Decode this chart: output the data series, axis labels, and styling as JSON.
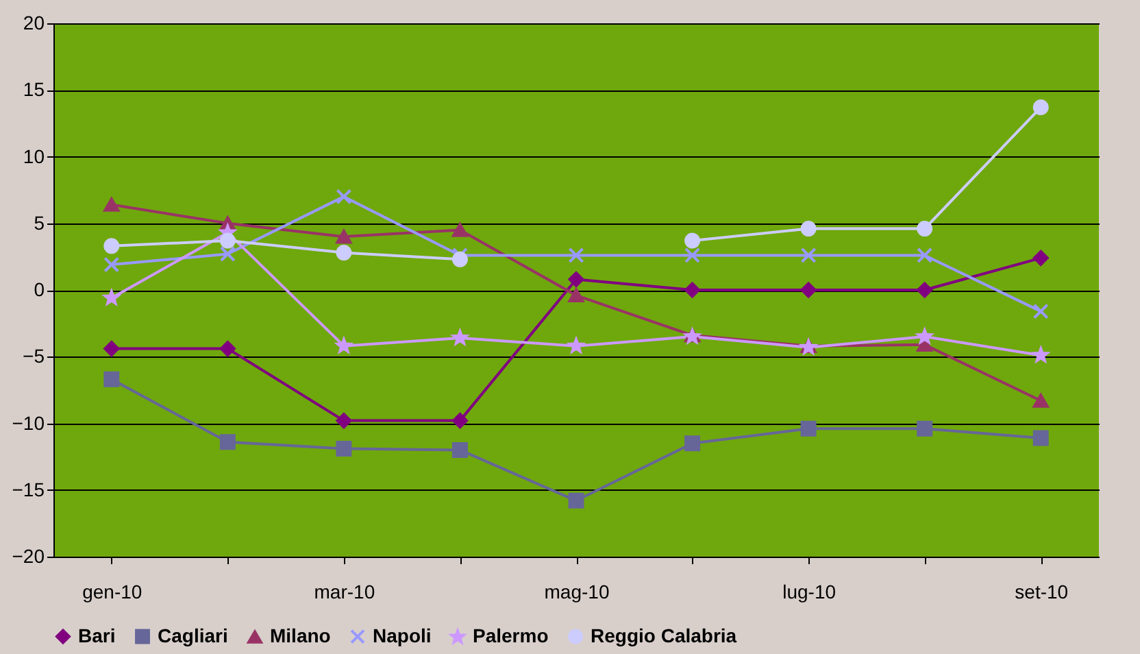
{
  "chart_data": {
    "type": "line",
    "categories": [
      "gen-10",
      null,
      "mar-10",
      null,
      "mag-10",
      null,
      "lug-10",
      null,
      "set-10"
    ],
    "series": [
      {
        "name": "Bari",
        "color": "#800080",
        "marker": "diamond",
        "values": [
          -4.4,
          -4.4,
          -9.8,
          -9.8,
          0.8,
          0,
          0,
          0,
          2.4
        ]
      },
      {
        "name": "Cagliari",
        "color": "#666699",
        "marker": "square",
        "values": [
          -6.7,
          -11.4,
          -11.9,
          -12.0,
          -15.8,
          -11.5,
          -10.4,
          -10.4,
          -11.1
        ]
      },
      {
        "name": "Milano",
        "color": "#993366",
        "marker": "triangle",
        "values": [
          6.4,
          5.0,
          4.0,
          4.5,
          -0.4,
          -3.4,
          -4.2,
          -4.1,
          -8.3
        ]
      },
      {
        "name": "Napoli",
        "color": "#9999ff",
        "marker": "cross",
        "values": [
          1.9,
          2.7,
          7.0,
          2.6,
          2.6,
          2.6,
          2.6,
          2.6,
          -1.6
        ]
      },
      {
        "name": "Palermo",
        "color": "#cc99ff",
        "marker": "star",
        "values": [
          -0.6,
          4.3,
          -4.2,
          -3.6,
          -4.2,
          -3.5,
          -4.3,
          -3.5,
          -4.9
        ]
      },
      {
        "name": "Reggio Calabria",
        "color": "#ccccff",
        "marker": "circle",
        "values": [
          3.3,
          3.7,
          2.8,
          2.3,
          null,
          3.7,
          4.6,
          4.6,
          13.7
        ]
      }
    ],
    "ylim": [
      -20,
      20
    ],
    "yticks": [
      -20,
      -15,
      -10,
      -5,
      0,
      5,
      10,
      15,
      20
    ],
    "grid": "y",
    "legend": "bottom"
  }
}
